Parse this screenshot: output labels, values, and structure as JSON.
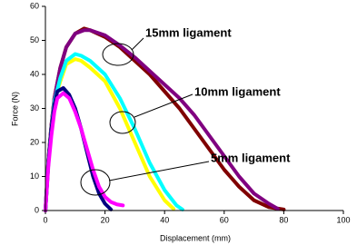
{
  "chart_data": {
    "type": "line",
    "x_label": "Displacement (mm)",
    "y_label": "Force (N)",
    "xlim": [
      0,
      100
    ],
    "xticks": [
      0,
      20,
      40,
      60,
      80,
      100
    ],
    "ylim": [
      0,
      60
    ],
    "yticks": [
      0,
      10,
      20,
      30,
      40,
      50,
      60
    ],
    "grid": false,
    "series": [
      {
        "color": "#800000",
        "x": [
          0,
          1,
          2,
          3,
          5,
          7,
          10,
          13,
          15,
          20,
          25,
          30,
          35,
          40,
          45,
          50,
          55,
          60,
          65,
          70,
          75,
          80
        ],
        "values": [
          0,
          15,
          25,
          33,
          42,
          48,
          52,
          53.5,
          53,
          51,
          48,
          44,
          40,
          35,
          30,
          24,
          18,
          12,
          7,
          3,
          1,
          0.3
        ]
      },
      {
        "color": "#800080",
        "x": [
          0,
          1,
          2,
          3,
          5,
          7,
          10,
          13,
          15,
          20,
          25,
          30,
          35,
          40,
          45,
          50,
          55,
          60,
          65,
          70,
          75,
          78
        ],
        "values": [
          0,
          15,
          25,
          33,
          42,
          48,
          52,
          53,
          53,
          51.5,
          48.5,
          45,
          41,
          37,
          33,
          28,
          22,
          16,
          10,
          5,
          2,
          0.5
        ]
      },
      {
        "color": "#ffff00",
        "x": [
          0,
          1,
          2,
          3,
          5,
          7,
          10,
          12,
          15,
          20,
          25,
          30,
          35,
          40,
          43
        ],
        "values": [
          0,
          14,
          24,
          32,
          38,
          43,
          44.5,
          44,
          42,
          38,
          30,
          20,
          10,
          3,
          0.5
        ]
      },
      {
        "color": "#00ffff",
        "x": [
          0,
          1,
          2,
          3,
          5,
          7,
          10,
          12,
          15,
          20,
          25,
          30,
          35,
          40,
          44,
          46
        ],
        "values": [
          0,
          14,
          24,
          32,
          39,
          44,
          46,
          45.5,
          44,
          40,
          33,
          24,
          14,
          6,
          1.5,
          0.3
        ]
      },
      {
        "color": "#000080",
        "x": [
          0,
          1,
          2,
          3,
          4,
          6,
          8,
          10,
          12,
          14,
          16,
          18,
          20,
          22
        ],
        "values": [
          0,
          14,
          24,
          31,
          35,
          36,
          34,
          30,
          24,
          17,
          10,
          5,
          2,
          0.3
        ]
      },
      {
        "color": "#ff00ff",
        "x": [
          0,
          1,
          2,
          3,
          4,
          6,
          8,
          10,
          12,
          14,
          16,
          18,
          20,
          22,
          24,
          26
        ],
        "values": [
          0,
          13,
          22,
          29,
          33,
          34.5,
          33,
          29,
          24,
          18,
          12,
          7,
          4,
          2.5,
          1.8,
          1.5
        ]
      }
    ],
    "annotations": [
      "15mm ligament",
      "10mm ligament",
      "5mm ligament"
    ]
  }
}
